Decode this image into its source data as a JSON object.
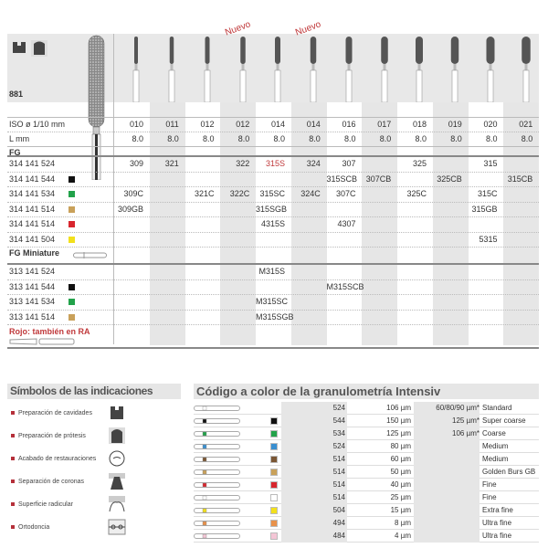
{
  "product": {
    "code": "881",
    "nuevo_label": "Nuevo"
  },
  "columns": [
    {
      "iso": "010",
      "l": "8.0"
    },
    {
      "iso": "011",
      "l": "8.0"
    },
    {
      "iso": "012",
      "l": "8.0"
    },
    {
      "iso": "012",
      "l": "8.0",
      "nuevo": true
    },
    {
      "iso": "014",
      "l": "8.0"
    },
    {
      "iso": "014",
      "l": "8.0",
      "nuevo": true
    },
    {
      "iso": "016",
      "l": "8.0"
    },
    {
      "iso": "017",
      "l": "8.0"
    },
    {
      "iso": "018",
      "l": "8.0"
    },
    {
      "iso": "019",
      "l": "8.0"
    },
    {
      "iso": "020",
      "l": "8.0"
    },
    {
      "iso": "021",
      "l": "8.0"
    }
  ],
  "labels": {
    "iso": "ISO ø 1/10 mm",
    "l": "L mm",
    "fg": "FG",
    "fg_mini": "FG Miniature",
    "rojo": "Rojo: también en RA"
  },
  "fg_rows": [
    {
      "ref": "314 141 524",
      "color": null,
      "cells": [
        "309",
        "321",
        "",
        "322",
        "315S",
        "324",
        "307",
        "",
        "325",
        "",
        "315",
        ""
      ],
      "red": [
        4
      ]
    },
    {
      "ref": "314 141 544",
      "color": "#111111",
      "cells": [
        "",
        "",
        "",
        "",
        "",
        "",
        "315SCB",
        "307CB",
        "",
        "325CB",
        "",
        "315CB"
      ]
    },
    {
      "ref": "314 141 534",
      "color": "#22a24a",
      "cells": [
        "309C",
        "",
        "321C",
        "322C",
        "315SC",
        "324C",
        "307C",
        "",
        "325C",
        "",
        "315C",
        ""
      ]
    },
    {
      "ref": "314 141 514",
      "color": "#c9a15a",
      "cells": [
        "309GB",
        "",
        "",
        "",
        "315SGB",
        "",
        "",
        "",
        "",
        "",
        "315GB",
        ""
      ]
    },
    {
      "ref": "314 141 514",
      "color": "#d8262e",
      "cells": [
        "",
        "",
        "",
        "",
        "4315S",
        "",
        "4307",
        "",
        "",
        "",
        "",
        ""
      ]
    },
    {
      "ref": "314 141 504",
      "color": "#f2e01c",
      "cells": [
        "",
        "",
        "",
        "",
        "",
        "",
        "",
        "",
        "",
        "",
        "5315",
        ""
      ]
    }
  ],
  "mini_rows": [
    {
      "ref": "313 141 524",
      "color": null,
      "cells": [
        "",
        "",
        "",
        "",
        "M315S",
        "",
        "",
        "",
        "",
        "",
        "",
        ""
      ]
    },
    {
      "ref": "313 141 544",
      "color": "#111111",
      "cells": [
        "",
        "",
        "",
        "",
        "",
        "",
        "M315SCB",
        "",
        "",
        "",
        "",
        ""
      ]
    },
    {
      "ref": "313 141 534",
      "color": "#22a24a",
      "cells": [
        "",
        "",
        "",
        "",
        "M315SC",
        "",
        "",
        "",
        "",
        "",
        "",
        ""
      ]
    },
    {
      "ref": "313 141 514",
      "color": "#c9a15a",
      "cells": [
        "",
        "",
        "",
        "",
        "M315SGB",
        "",
        "",
        "",
        "",
        "",
        "",
        ""
      ]
    }
  ],
  "indications": {
    "title": "Símbolos de las indicaciones",
    "items": [
      {
        "label": "Preparación de cavidades",
        "icon": "cavity-preparation-icon"
      },
      {
        "label": "Preparación de prótesis",
        "icon": "prosthesis-preparation-icon"
      },
      {
        "label": "Acabado de restauraciones",
        "icon": "restoration-finishing-icon"
      },
      {
        "label": "Separación de coronas",
        "icon": "crown-separation-icon"
      },
      {
        "label": "Superficie radicular",
        "icon": "root-surface-icon"
      },
      {
        "label": "Ortodoncia",
        "icon": "orthodontics-icon"
      }
    ]
  },
  "granulometry": {
    "title": "Código a color de la granulometría Intensiv",
    "rows": [
      {
        "color": null,
        "code": "524",
        "size": "106 µm",
        "alt": "60/80/90 µm*",
        "grade": "Standard"
      },
      {
        "color": "#111111",
        "code": "544",
        "size": "150 µm",
        "alt": "125 µm*",
        "grade": "Super coarse"
      },
      {
        "color": "#22a24a",
        "code": "534",
        "size": "125 µm",
        "alt": "106 µm*",
        "grade": "Coarse"
      },
      {
        "color": "#3a8fd0",
        "code": "524",
        "size": "80 µm",
        "alt": "",
        "grade": "Medium"
      },
      {
        "color": "#7a5634",
        "code": "514",
        "size": "60 µm",
        "alt": "",
        "grade": "Medium"
      },
      {
        "color": "#c9a15a",
        "code": "514",
        "size": "50 µm",
        "alt": "",
        "grade": "Golden Burs GB"
      },
      {
        "color": "#d8262e",
        "code": "514",
        "size": "40 µm",
        "alt": "",
        "grade": "Fine"
      },
      {
        "color": "#ffffff",
        "code": "514",
        "size": "25 µm",
        "alt": "",
        "grade": "Fine"
      },
      {
        "color": "#f2e01c",
        "code": "504",
        "size": "15 µm",
        "alt": "",
        "grade": "Extra fine"
      },
      {
        "color": "#e8914a",
        "code": "494",
        "size": "8 µm",
        "alt": "",
        "grade": "Ultra fine"
      },
      {
        "color": "#f4c6d6",
        "code": "484",
        "size": "4 µm",
        "alt": "",
        "grade": "Ultra fine"
      }
    ]
  }
}
